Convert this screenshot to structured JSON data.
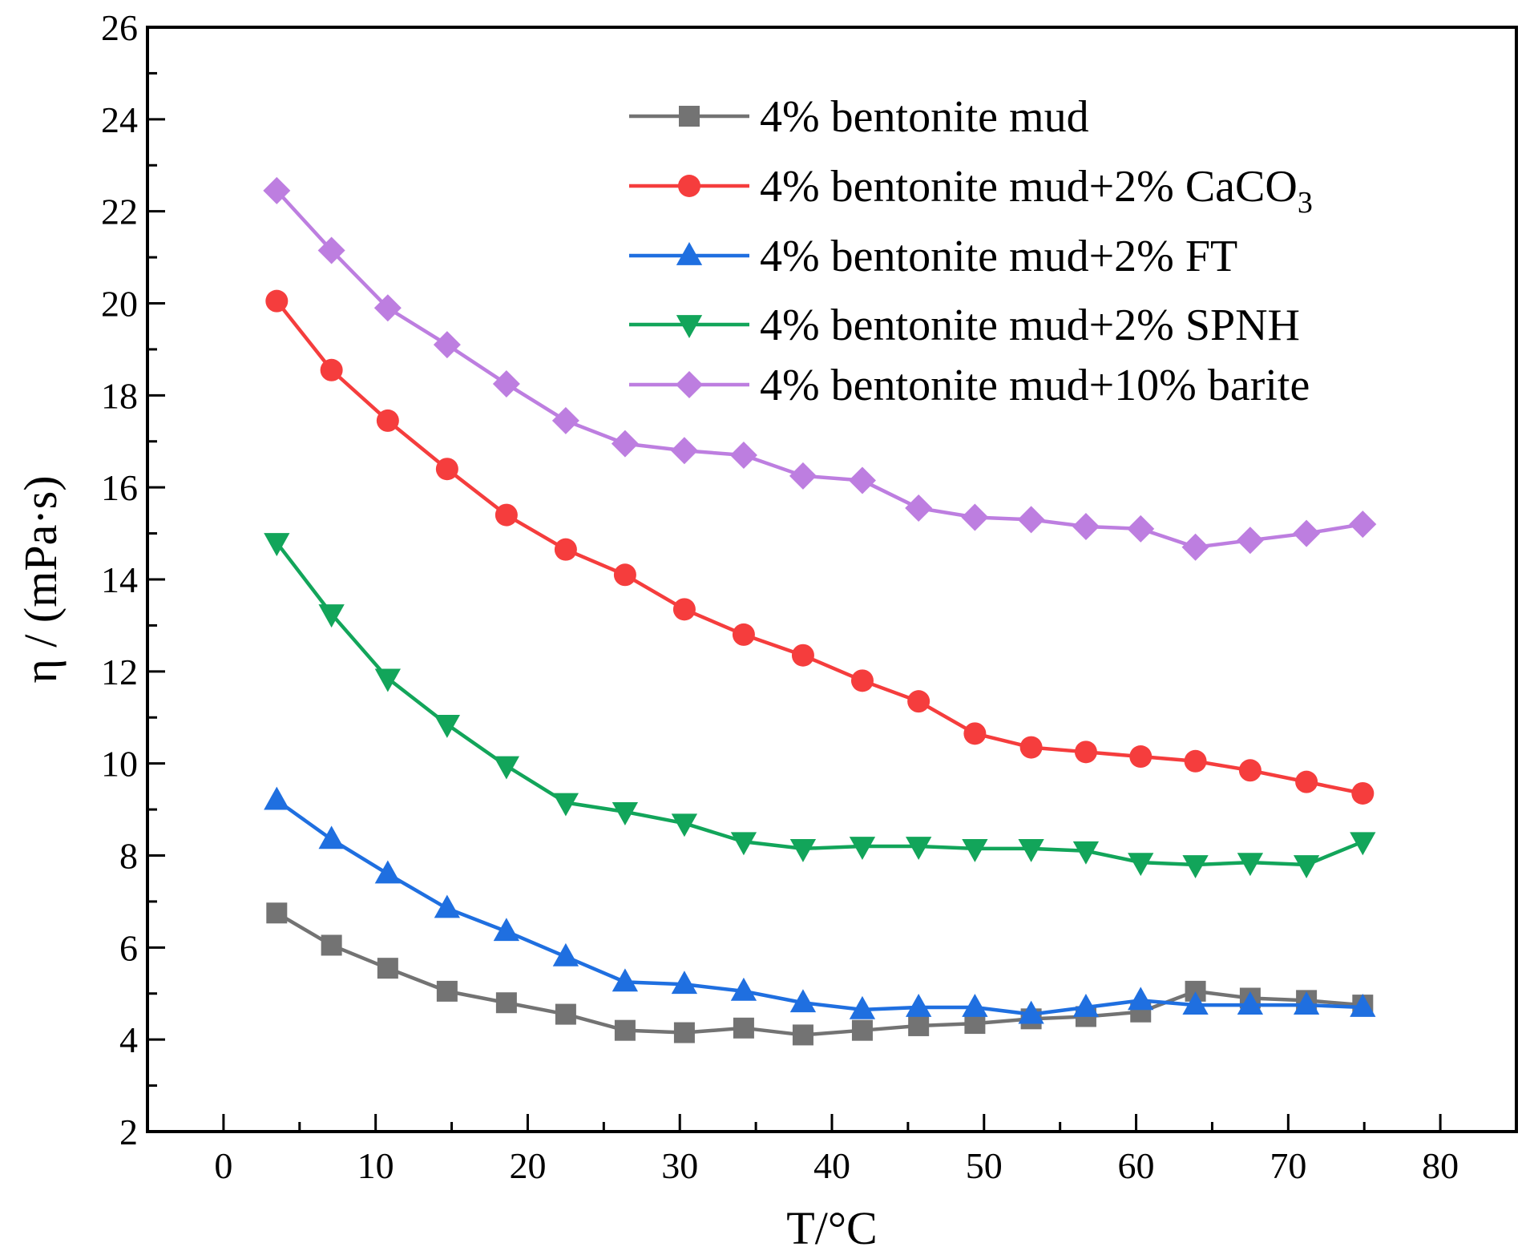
{
  "chart_data": {
    "type": "line",
    "title": "",
    "xlabel": "T/°C",
    "ylabel": "η / (mPa·s)",
    "xlim": [
      -5,
      85
    ],
    "ylim": [
      2,
      26
    ],
    "xticks": [
      0,
      10,
      20,
      30,
      40,
      50,
      60,
      70,
      80
    ],
    "yticks": [
      2,
      4,
      6,
      8,
      10,
      12,
      14,
      16,
      18,
      20,
      22,
      24,
      26
    ],
    "legend_position": "top-right",
    "x": [
      3.5,
      7.1,
      10.8,
      14.7,
      18.6,
      22.5,
      26.4,
      30.3,
      34.2,
      38.1,
      42.0,
      45.7,
      49.4,
      53.1,
      56.7,
      60.3,
      63.9,
      67.5,
      71.2,
      74.9
    ],
    "series": [
      {
        "name": "4% bentonite mud",
        "legend_main": "4% bentonite mud",
        "legend_sub": "",
        "color": "#737373",
        "marker": "square",
        "values": [
          6.75,
          6.05,
          5.55,
          5.05,
          4.8,
          4.55,
          4.2,
          4.15,
          4.25,
          4.1,
          4.2,
          4.3,
          4.35,
          4.45,
          4.5,
          4.6,
          5.05,
          4.9,
          4.85,
          4.75
        ]
      },
      {
        "name": "4% bentonite mud+2% CaCO3",
        "legend_main": "4% bentonite mud+2% CaCO",
        "legend_sub": "3",
        "color": "#f53d3d",
        "marker": "circle",
        "values": [
          20.05,
          18.55,
          17.45,
          16.4,
          15.4,
          14.65,
          14.1,
          13.35,
          12.8,
          12.35,
          11.8,
          11.35,
          10.65,
          10.35,
          10.25,
          10.15,
          10.05,
          9.85,
          9.6,
          9.35
        ]
      },
      {
        "name": "4% bentonite mud+2% FT",
        "legend_main": "4% bentonite mud+2% FT",
        "legend_sub": "",
        "color": "#1f6fe0",
        "marker": "triangle-up",
        "values": [
          9.2,
          8.35,
          7.6,
          6.85,
          6.35,
          5.8,
          5.25,
          5.2,
          5.05,
          4.8,
          4.65,
          4.7,
          4.7,
          4.55,
          4.7,
          4.85,
          4.75,
          4.75,
          4.75,
          4.7
        ]
      },
      {
        "name": "4% bentonite mud+2% SPNH",
        "legend_main": "4% bentonite mud+2% SPNH",
        "legend_sub": "",
        "color": "#12a55a",
        "marker": "triangle-down",
        "values": [
          14.8,
          13.25,
          11.85,
          10.85,
          9.95,
          9.15,
          8.95,
          8.7,
          8.3,
          8.15,
          8.2,
          8.2,
          8.15,
          8.15,
          8.1,
          7.85,
          7.8,
          7.85,
          7.8,
          8.3
        ]
      },
      {
        "name": "4% bentonite mud+10% barite",
        "legend_main": "4% bentonite mud+10% barite",
        "legend_sub": "",
        "color": "#bd7ee0",
        "marker": "diamond",
        "values": [
          22.45,
          21.15,
          19.9,
          19.1,
          18.25,
          17.45,
          16.95,
          16.8,
          16.7,
          16.25,
          16.15,
          15.55,
          15.35,
          15.3,
          15.15,
          15.1,
          14.7,
          14.85,
          15.0,
          15.2
        ]
      }
    ]
  }
}
